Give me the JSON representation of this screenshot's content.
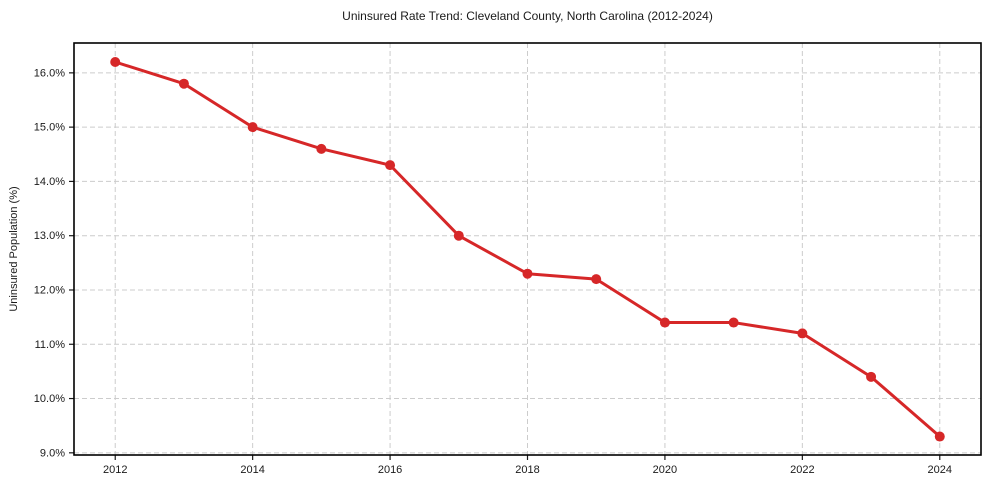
{
  "chart_data": {
    "type": "line",
    "title": "Uninsured Rate Trend: Cleveland County, North Carolina (2012-2024)",
    "xlabel": "",
    "ylabel": "Uninsured Population (%)",
    "x": [
      2012,
      2013,
      2014,
      2015,
      2016,
      2017,
      2018,
      2019,
      2020,
      2021,
      2022,
      2023,
      2024
    ],
    "values": [
      16.2,
      15.8,
      15.0,
      14.6,
      14.3,
      13.0,
      12.3,
      12.2,
      11.4,
      11.4,
      11.2,
      10.4,
      9.3
    ],
    "xticks": {
      "values": [
        2012,
        2014,
        2016,
        2018,
        2020,
        2022,
        2024
      ],
      "labels": [
        "2012",
        "2014",
        "2016",
        "2018",
        "2020",
        "2022",
        "2024"
      ]
    },
    "yticks": {
      "values": [
        9,
        10,
        11,
        12,
        13,
        14,
        15,
        16
      ],
      "labels": [
        "9.0%",
        "10.0%",
        "11.0%",
        "12.0%",
        "13.0%",
        "14.0%",
        "15.0%",
        "16.0%"
      ]
    },
    "xlim": [
      2011.4,
      2024.6
    ],
    "ylim": [
      8.96,
      16.55
    ],
    "grid": true,
    "legend_position": "none",
    "line_color": "#d62728",
    "marker": "circle",
    "grid_color": "#cccccc",
    "axis_color": "#1a1a1a",
    "background_color": "#ffffff"
  }
}
